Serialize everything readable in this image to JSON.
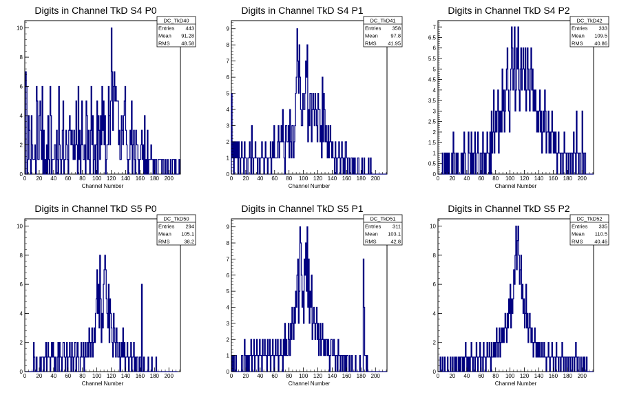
{
  "colors": {
    "hist": "#000080",
    "frame": "#000000",
    "background": "#ffffff"
  },
  "chart_data": [
    {
      "type": "bar",
      "title": "Digits in Channel TkD S4 P0",
      "xlabel": "Channel Number",
      "xlim": [
        0,
        216
      ],
      "ylim": [
        0,
        10.5
      ],
      "xticks": [
        0,
        20,
        40,
        60,
        80,
        100,
        120,
        140,
        160,
        180,
        200
      ],
      "yticks": [
        0,
        2,
        4,
        6,
        8,
        10
      ],
      "stats": {
        "name": "DC_TkD40",
        "entries_label": "Entries",
        "entries": "443",
        "mean_label": "Mean",
        "mean": "91.28",
        "rms_label": "RMS",
        "rms": "48.58"
      },
      "bin_width": 1,
      "values": [
        0,
        7,
        6,
        0,
        1,
        4,
        3,
        1,
        0,
        4,
        2,
        1,
        1,
        1,
        2,
        0,
        6,
        5,
        1,
        1,
        4,
        5,
        3,
        1,
        6,
        0,
        3,
        0,
        1,
        0,
        2,
        0,
        4,
        1,
        0,
        6,
        4,
        0,
        1,
        1,
        1,
        2,
        2,
        0,
        3,
        1,
        0,
        6,
        2,
        1,
        0,
        1,
        3,
        5,
        0,
        1,
        1,
        3,
        2,
        1,
        0,
        3,
        4,
        3,
        2,
        3,
        2,
        1,
        3,
        1,
        2,
        5,
        2,
        0,
        6,
        1,
        3,
        0,
        2,
        5,
        2,
        1,
        1,
        2,
        0,
        5,
        4,
        1,
        3,
        1,
        0,
        3,
        6,
        2,
        4,
        0,
        1,
        2,
        0,
        2,
        5,
        0,
        4,
        3,
        1,
        4,
        2,
        6,
        3,
        5,
        2,
        4,
        0,
        1,
        2,
        2,
        6,
        4,
        2,
        5,
        10,
        7,
        3,
        6,
        7,
        5,
        6,
        5,
        5,
        5,
        2,
        3,
        1,
        1,
        4,
        3,
        2,
        4,
        5,
        6,
        3,
        2,
        1,
        0,
        1,
        1,
        3,
        2,
        5,
        0,
        2,
        3,
        1,
        0,
        3,
        2,
        2,
        1,
        0,
        1,
        1,
        2,
        3,
        1,
        2,
        0,
        4,
        0,
        1,
        0,
        3,
        0,
        1,
        1,
        1,
        2,
        1,
        1,
        0,
        1,
        0,
        1,
        1,
        0,
        0,
        1,
        1,
        1,
        1,
        1,
        0,
        1,
        1,
        0,
        0,
        1,
        0,
        0,
        1,
        0,
        0,
        0,
        1,
        0,
        0,
        1,
        1,
        1,
        0,
        1,
        0,
        0,
        0,
        0,
        1
      ]
    },
    {
      "type": "bar",
      "title": "Digits in Channel TkD S4 P1",
      "xlabel": "Channel Number",
      "xlim": [
        0,
        216
      ],
      "ylim": [
        0,
        9.5
      ],
      "xticks": [
        0,
        20,
        40,
        60,
        80,
        100,
        120,
        140,
        160,
        180,
        200
      ],
      "yticks": [
        0,
        1,
        2,
        3,
        4,
        5,
        6,
        7,
        8,
        9
      ],
      "stats": {
        "name": "DC_TkD41",
        "entries_label": "Entries",
        "entries": "358",
        "mean_label": "Mean",
        "mean": "97.8",
        "rms_label": "RMS",
        "rms": "41.95"
      },
      "bin_width": 1,
      "values": [
        5,
        1,
        2,
        0,
        2,
        1,
        2,
        1,
        2,
        0,
        2,
        1,
        0,
        1,
        2,
        1,
        1,
        0,
        2,
        1,
        1,
        0,
        0,
        1,
        1,
        2,
        1,
        0,
        3,
        1,
        0,
        1,
        1,
        2,
        1,
        1,
        0,
        1,
        1,
        0,
        1,
        1,
        2,
        1,
        1,
        0,
        1,
        2,
        1,
        1,
        0,
        1,
        1,
        1,
        2,
        0,
        1,
        2,
        1,
        3,
        1,
        1,
        1,
        1,
        2,
        3,
        1,
        2,
        2,
        3,
        2,
        4,
        2,
        1,
        0,
        3,
        3,
        2,
        2,
        3,
        1,
        4,
        2,
        1,
        3,
        3,
        1,
        2,
        3,
        5,
        6,
        9,
        7,
        5,
        8,
        6,
        4,
        3,
        3,
        5,
        4,
        4,
        5,
        7,
        6,
        8,
        2,
        4,
        3,
        5,
        5,
        2,
        4,
        5,
        4,
        3,
        5,
        4,
        3,
        2,
        5,
        4,
        4,
        2,
        3,
        1,
        6,
        2,
        5,
        4,
        2,
        3,
        2,
        1,
        3,
        1,
        2,
        3,
        2,
        1,
        2,
        1,
        1,
        0,
        2,
        1,
        0,
        1,
        1,
        2,
        1,
        0,
        1,
        2,
        1,
        0,
        1,
        0,
        2,
        2,
        1,
        0,
        1,
        1,
        0,
        0,
        1,
        1,
        0,
        1,
        0,
        1,
        0,
        0,
        0,
        1,
        1,
        0,
        0,
        0,
        0,
        1,
        0,
        0,
        1,
        0,
        0,
        0,
        0,
        0,
        1,
        0,
        0,
        1,
        0,
        0,
        0,
        0,
        0,
        0,
        0,
        0,
        0,
        0,
        0,
        0,
        0,
        0,
        0,
        0,
        0,
        0,
        0,
        0,
        0,
        0
      ]
    },
    {
      "type": "bar",
      "title": "Digits in Channel TkD S4 P2",
      "xlabel": "Channel Number",
      "xlim": [
        0,
        216
      ],
      "ylim": [
        0,
        7.3
      ],
      "xticks": [
        0,
        20,
        40,
        60,
        80,
        100,
        120,
        140,
        160,
        180,
        200
      ],
      "yticks": [
        0,
        0.5,
        1,
        1.5,
        2,
        2.5,
        3,
        3.5,
        4,
        4.5,
        5,
        5.5,
        6,
        6.5,
        7
      ],
      "stats": {
        "name": "DC_TkD42",
        "entries_label": "Entries",
        "entries": "333",
        "mean_label": "Mean",
        "mean": "109.5",
        "rms_label": "RMS",
        "rms": "40.86"
      },
      "bin_width": 1,
      "values": [
        0,
        0,
        0,
        0,
        0,
        0,
        1,
        0,
        0,
        1,
        0,
        1,
        0,
        1,
        0,
        1,
        0,
        0,
        0,
        1,
        0,
        2,
        1,
        0,
        0,
        1,
        0,
        1,
        0,
        0,
        0,
        0,
        1,
        0,
        1,
        0,
        2,
        1,
        0,
        0,
        0,
        0,
        2,
        1,
        1,
        0,
        2,
        0,
        1,
        0,
        1,
        2,
        0,
        0,
        1,
        2,
        1,
        0,
        0,
        1,
        1,
        0,
        2,
        1,
        0,
        1,
        0,
        1,
        2,
        1,
        1,
        0,
        2,
        0,
        3,
        1,
        2,
        4,
        1,
        2,
        3,
        2,
        3,
        4,
        1,
        3,
        2,
        3,
        2,
        5,
        3,
        4,
        2,
        3,
        4,
        5,
        6,
        4,
        3,
        2,
        4,
        5,
        7,
        6,
        4,
        5,
        7,
        3,
        4,
        6,
        5,
        7,
        4,
        3,
        5,
        6,
        4,
        5,
        6,
        5,
        4,
        6,
        3,
        4,
        6,
        5,
        4,
        3,
        5,
        6,
        4,
        5,
        3,
        4,
        3,
        4,
        3,
        2,
        3,
        2,
        3,
        4,
        2,
        3,
        1,
        2,
        3,
        2,
        4,
        3,
        1,
        2,
        2,
        3,
        1,
        2,
        1,
        2,
        3,
        2,
        1,
        2,
        1,
        2,
        1,
        0,
        1,
        2,
        1,
        1,
        0,
        1,
        1,
        0,
        1,
        2,
        1,
        1,
        0,
        1,
        1,
        0,
        1,
        1,
        0,
        1,
        1,
        0,
        2,
        1,
        1,
        0,
        3,
        1,
        1,
        0,
        1,
        1,
        0,
        0,
        3,
        1,
        0,
        1,
        1,
        0,
        0,
        0,
        0,
        0,
        0,
        0,
        0,
        0,
        0,
        0
      ]
    },
    {
      "type": "bar",
      "title": "Digits in Channel TkD S5 P0",
      "xlabel": "Channel Number",
      "xlim": [
        0,
        216
      ],
      "ylim": [
        0,
        10.5
      ],
      "xticks": [
        0,
        20,
        40,
        60,
        80,
        100,
        120,
        140,
        160,
        180,
        200
      ],
      "yticks": [
        0,
        2,
        4,
        6,
        8,
        10
      ],
      "stats": {
        "name": "DC_TkD50",
        "entries_label": "Entries",
        "entries": "294",
        "mean_label": "Mean",
        "mean": "105.1",
        "rms_label": "RMS",
        "rms": "38.2"
      },
      "bin_width": 1,
      "values": [
        0,
        0,
        0,
        0,
        0,
        0,
        0,
        0,
        0,
        0,
        0,
        0,
        2,
        1,
        0,
        0,
        1,
        0,
        0,
        0,
        0,
        1,
        0,
        1,
        1,
        1,
        0,
        1,
        1,
        2,
        0,
        1,
        2,
        1,
        1,
        0,
        1,
        2,
        1,
        2,
        1,
        0,
        1,
        0,
        0,
        1,
        2,
        0,
        2,
        1,
        1,
        0,
        1,
        2,
        2,
        1,
        0,
        1,
        2,
        0,
        1,
        1,
        2,
        1,
        0,
        2,
        1,
        0,
        1,
        2,
        2,
        0,
        1,
        2,
        1,
        0,
        0,
        1,
        2,
        1,
        1,
        2,
        0,
        1,
        2,
        1,
        1,
        2,
        1,
        3,
        2,
        1,
        2,
        3,
        1,
        2,
        3,
        2,
        4,
        5,
        7,
        4,
        6,
        3,
        8,
        5,
        2,
        4,
        3,
        6,
        7,
        8,
        7,
        5,
        4,
        3,
        6,
        2,
        5,
        4,
        3,
        2,
        1,
        4,
        3,
        2,
        1,
        3,
        2,
        1,
        1,
        2,
        0,
        1,
        2,
        1,
        3,
        1,
        2,
        0,
        1,
        1,
        2,
        1,
        0,
        1,
        1,
        2,
        0,
        1,
        1,
        2,
        0,
        1,
        0,
        1,
        1,
        0,
        0,
        1,
        1,
        0,
        6,
        0,
        0,
        1,
        0,
        0,
        0,
        0,
        0,
        1,
        0,
        0,
        0,
        0,
        1,
        0,
        0,
        0,
        0,
        0,
        1,
        0,
        0,
        0,
        0,
        0,
        0,
        0,
        0,
        0,
        0,
        0,
        0,
        0,
        0,
        0,
        0,
        0,
        0,
        0,
        0,
        0,
        0,
        0,
        0,
        0,
        0,
        0,
        0,
        0
      ]
    },
    {
      "type": "bar",
      "title": "Digits in Channel TkD S5 P1",
      "xlabel": "Channel Number",
      "xlim": [
        0,
        216
      ],
      "ylim": [
        0,
        9.5
      ],
      "xticks": [
        0,
        20,
        40,
        60,
        80,
        100,
        120,
        140,
        160,
        180,
        200
      ],
      "yticks": [
        0,
        1,
        2,
        3,
        4,
        5,
        6,
        7,
        8,
        9
      ],
      "stats": {
        "name": "DC_TkD51",
        "entries_label": "Entries",
        "entries": "311",
        "mean_label": "Mean",
        "mean": "103.1",
        "rms_label": "RMS",
        "rms": "42.8"
      },
      "bin_width": 1,
      "values": [
        0,
        1,
        0,
        1,
        0,
        0,
        1,
        0,
        0,
        0,
        0,
        0,
        0,
        0,
        1,
        1,
        0,
        0,
        2,
        1,
        0,
        1,
        0,
        1,
        0,
        1,
        1,
        2,
        0,
        1,
        1,
        2,
        0,
        1,
        1,
        2,
        1,
        0,
        1,
        2,
        1,
        1,
        0,
        2,
        1,
        1,
        2,
        1,
        1,
        0,
        2,
        1,
        1,
        2,
        0,
        1,
        1,
        2,
        1,
        0,
        1,
        2,
        1,
        1,
        2,
        0,
        1,
        1,
        2,
        1,
        1,
        0,
        2,
        1,
        3,
        1,
        2,
        1,
        1,
        3,
        2,
        1,
        3,
        2,
        4,
        3,
        2,
        4,
        3,
        5,
        4,
        6,
        7,
        3,
        5,
        9,
        8,
        6,
        4,
        5,
        3,
        7,
        6,
        8,
        5,
        9,
        4,
        7,
        3,
        5,
        4,
        6,
        2,
        3,
        4,
        3,
        2,
        3,
        4,
        2,
        3,
        1,
        2,
        3,
        1,
        2,
        3,
        2,
        1,
        2,
        1,
        2,
        2,
        1,
        2,
        1,
        0,
        1,
        2,
        2,
        1,
        1,
        2,
        1,
        0,
        1,
        1,
        0,
        2,
        1,
        1,
        0,
        1,
        1,
        0,
        1,
        1,
        0,
        1,
        0,
        1,
        1,
        0,
        0,
        1,
        0,
        0,
        1,
        0,
        0,
        0,
        0,
        1,
        0,
        0,
        0,
        0,
        0,
        1,
        0,
        0,
        0,
        0,
        7,
        4,
        1,
        1,
        0,
        1,
        0,
        0,
        0,
        0,
        0,
        0,
        0,
        0,
        0,
        0,
        0,
        0,
        0,
        0,
        0,
        0,
        0,
        0,
        0,
        0,
        0,
        0,
        0,
        0,
        0,
        0,
        0
      ]
    },
    {
      "type": "bar",
      "title": "Digits in Channel TkD S5 P2",
      "xlabel": "Channel Number",
      "xlim": [
        0,
        216
      ],
      "ylim": [
        0,
        10.5
      ],
      "xticks": [
        0,
        20,
        40,
        60,
        80,
        100,
        120,
        140,
        160,
        180,
        200
      ],
      "yticks": [
        0,
        2,
        4,
        6,
        8,
        10
      ],
      "stats": {
        "name": "DC_TkD52",
        "entries_label": "Entries",
        "entries": "335",
        "mean_label": "Mean",
        "mean": "110.5",
        "rms_label": "RMS",
        "rms": "40.46"
      },
      "bin_width": 1,
      "values": [
        0,
        0,
        0,
        1,
        0,
        0,
        1,
        0,
        0,
        1,
        0,
        0,
        0,
        1,
        0,
        0,
        0,
        1,
        0,
        0,
        1,
        0,
        0,
        1,
        0,
        1,
        0,
        0,
        1,
        0,
        1,
        0,
        1,
        1,
        0,
        1,
        0,
        1,
        2,
        1,
        0,
        1,
        0,
        1,
        0,
        1,
        2,
        1,
        0,
        1,
        1,
        0,
        1,
        2,
        1,
        0,
        1,
        1,
        2,
        0,
        1,
        1,
        0,
        2,
        1,
        1,
        0,
        1,
        2,
        1,
        1,
        2,
        1,
        0,
        2,
        1,
        1,
        2,
        1,
        2,
        1,
        3,
        2,
        1,
        2,
        3,
        1,
        2,
        3,
        2,
        3,
        2,
        3,
        4,
        3,
        2,
        4,
        3,
        5,
        4,
        6,
        3,
        5,
        4,
        5,
        7,
        6,
        8,
        10,
        7,
        9,
        10,
        8,
        6,
        7,
        8,
        5,
        6,
        4,
        5,
        3,
        4,
        6,
        3,
        4,
        2,
        3,
        4,
        3,
        2,
        3,
        2,
        1,
        2,
        3,
        2,
        1,
        2,
        1,
        2,
        1,
        2,
        1,
        1,
        2,
        1,
        1,
        2,
        1,
        1,
        0,
        1,
        1,
        2,
        1,
        0,
        1,
        1,
        2,
        1,
        0,
        1,
        1,
        0,
        2,
        1,
        1,
        0,
        1,
        1,
        0,
        1,
        2,
        1,
        0,
        1,
        1,
        0,
        1,
        1,
        0,
        1,
        1,
        0,
        1,
        1,
        0,
        1,
        1,
        0,
        1,
        2,
        1,
        0,
        1,
        1,
        0,
        0,
        1,
        0,
        0,
        1,
        0,
        1,
        0,
        0,
        1,
        0,
        0,
        0,
        0,
        0,
        0,
        0,
        0,
        0
      ]
    }
  ]
}
